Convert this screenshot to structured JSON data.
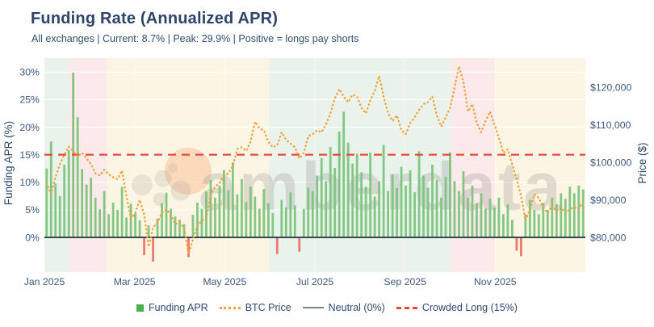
{
  "header": {
    "title": "Funding Rate (Annualized APR)",
    "subtitle": "All exchanges | Current: 8.7% | Peak: 29.9% | Positive = longs pay shorts"
  },
  "watermark": {
    "text": "amberdata"
  },
  "legend": [
    {
      "label": "Funding APR",
      "swatch": "square",
      "color": "#4caf50"
    },
    {
      "label": "BTC Price",
      "swatch": "dotted-line",
      "color": "#f49f37"
    },
    {
      "label": "Neutral (0%)",
      "swatch": "solid-line",
      "color": "#74838c"
    },
    {
      "label": "Crowded Long (15%)",
      "swatch": "dashed-line",
      "color": "#e8473e"
    }
  ],
  "chart_data": {
    "type": "bar+line",
    "title": "Funding Rate (Annualized APR)",
    "x_tick_labels": [
      "Jan 2025",
      "Mar 2025",
      "May 2025",
      "Jul 2025",
      "Sep 2025",
      "Nov 2025"
    ],
    "x_tick_month_index": [
      0,
      2,
      4,
      6,
      8,
      10
    ],
    "x_range_months": 12,
    "left_axis": {
      "label": "Funding APR (%)",
      "tick_labels": [
        "0%",
        "5%",
        "10%",
        "15%",
        "20%",
        "25%",
        "30%"
      ],
      "tick_values": [
        0,
        5,
        10,
        15,
        20,
        25,
        30
      ],
      "grid_values": [
        5,
        10,
        15,
        20,
        25,
        30
      ],
      "range": [
        -6.3,
        32.5
      ]
    },
    "right_axis": {
      "label": "Price ($)",
      "tick_labels": [
        "$80,000",
        "$90,000",
        "$100,000",
        "$110,000",
        "$120,000"
      ],
      "tick_values_kusd": [
        80,
        90,
        100,
        110,
        120
      ],
      "range_kusd": [
        78.7,
        120
      ]
    },
    "reference_lines": [
      {
        "name": "Neutral (0%)",
        "value_pct": 0,
        "color": "#37474f",
        "style": "solid"
      },
      {
        "name": "Crowded Long (15%)",
        "value_pct": 15,
        "color": "#e8473e",
        "style": "dashed"
      }
    ],
    "bands": [
      {
        "from": 0.0,
        "to": 0.045,
        "color": "#e9f3eb"
      },
      {
        "from": 0.045,
        "to": 0.116,
        "color": "#fce9e9"
      },
      {
        "from": 0.116,
        "to": 0.415,
        "color": "#fdf5e3"
      },
      {
        "from": 0.415,
        "to": 0.751,
        "color": "#e9f3eb"
      },
      {
        "from": 0.751,
        "to": 0.833,
        "color": "#fce9e9"
      },
      {
        "from": 0.833,
        "to": 1.0,
        "color": "#fdf5e3"
      }
    ],
    "series": [
      {
        "name": "Funding APR",
        "type": "bar",
        "unit": "% APR (annualized), ~3-day resolution Jan–Dec 2025",
        "color_positive": "#7cc47e",
        "color_negative": "#ef7265",
        "current": 8.7,
        "peak": 29.9,
        "values": [
          12.5,
          17.4,
          9.8,
          7.5,
          13.2,
          15.8,
          29.9,
          21.8,
          12.4,
          9.6,
          10.8,
          7.2,
          5.1,
          8.4,
          4.2,
          6.3,
          5.0,
          9.2,
          3.6,
          6.1,
          4.4,
          3.1,
          -3.2,
          2.2,
          -4.4,
          3.4,
          6.2,
          8.1,
          5.2,
          3.8,
          3.2,
          2.4,
          -3.6,
          4.1,
          6.3,
          5.2,
          8.3,
          10.4,
          7.2,
          9.4,
          12.2,
          8.6,
          13.6,
          7.8,
          10.6,
          6.4,
          9.2,
          7.4,
          5.2,
          8.8,
          6.2,
          4.4,
          -3.0,
          6.8,
          5.4,
          8.2,
          5.8,
          -2.6,
          5.2,
          9.0,
          8.4,
          11.2,
          14.4,
          10.2,
          16.4,
          12.6,
          19.2,
          22.8,
          17.2,
          13.4,
          15.2,
          11.8,
          9.2,
          15.4,
          7.4,
          10.2,
          16.8,
          8.4,
          11.4,
          9.0,
          12.8,
          9.4,
          12.2,
          8.2,
          15.6,
          11.2,
          9.0,
          13.2,
          10.4,
          7.2,
          11.0,
          15.4,
          10.2,
          8.4,
          12.0,
          7.2,
          9.4,
          6.2,
          8.0,
          5.2,
          7.0,
          5.4,
          7.2,
          4.2,
          6.0,
          3.2,
          -2.4,
          -3.4,
          4.2,
          6.8,
          5.0,
          4.2,
          6.2,
          5.0,
          7.2,
          6.0,
          8.0,
          7.0,
          9.2,
          8.0,
          9.4,
          8.7
        ]
      },
      {
        "name": "BTC Price",
        "type": "line",
        "unit": "USD thousands, ~3-day resolution Jan–Dec 2025",
        "color": "#f49f37",
        "values": [
          94.5,
          91.5,
          96,
          99.5,
          102,
          104.2,
          103,
          101.5,
          102.5,
          101,
          99.5,
          97,
          96.5,
          98,
          96.8,
          96,
          95.5,
          97.8,
          91,
          85,
          86.5,
          90,
          86,
          77.5,
          82.5,
          84,
          86.5,
          87.5,
          86,
          83.5,
          84,
          82.5,
          75.5,
          79.5,
          83,
          84.5,
          85,
          91.5,
          93.5,
          94.5,
          96.5,
          97,
          99,
          103.5,
          104,
          103,
          105.5,
          110.8,
          109,
          108.5,
          105.5,
          104,
          104.5,
          108,
          106,
          105,
          104,
          101,
          102.5,
          107,
          107.5,
          108.5,
          108,
          110,
          113,
          117,
          119.5,
          117.5,
          116,
          118,
          117.5,
          114.5,
          113,
          116.5,
          119,
          123,
          117.5,
          113,
          111,
          112.5,
          108.5,
          107.5,
          110.5,
          112,
          114,
          115.5,
          116,
          117.5,
          112.5,
          109.5,
          112,
          114.5,
          120,
          125.5,
          121.5,
          113.5,
          115.5,
          110.5,
          108,
          111,
          113.5,
          110,
          106.5,
          102.5,
          103.5,
          99.5,
          95.5,
          91,
          84.5,
          87.5,
          91.5,
          90.5,
          88,
          86.5,
          88.5,
          87,
          88,
          86.5,
          87.5,
          88,
          87.5,
          89.5
        ]
      }
    ]
  }
}
